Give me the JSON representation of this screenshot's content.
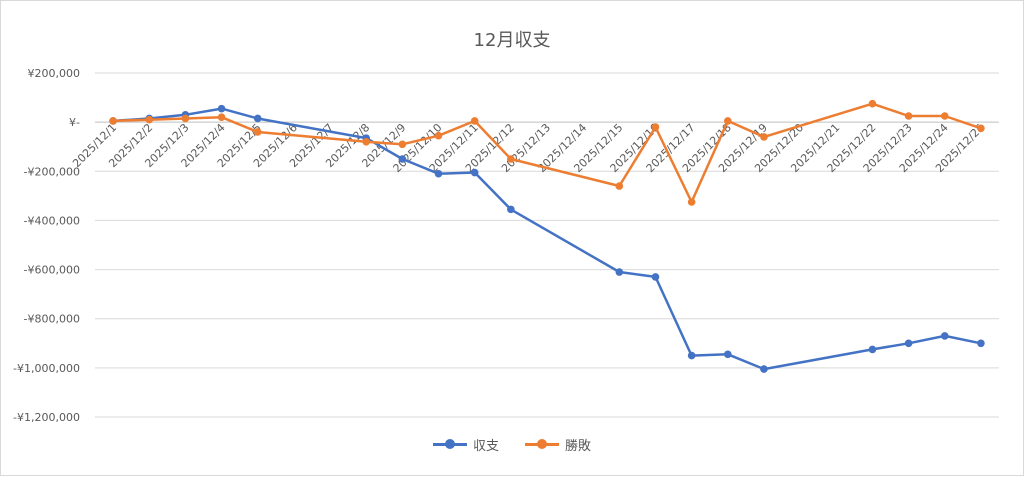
{
  "chart_data": {
    "type": "line",
    "title": "12月収支",
    "xlabel": "",
    "ylabel": "",
    "ylim": [
      -1200000,
      200000
    ],
    "yticks": [
      200000,
      0,
      -200000,
      -400000,
      -600000,
      -800000,
      -1000000,
      -1200000
    ],
    "ytick_labels": [
      "¥200,000",
      "¥-",
      "-¥200,000",
      "-¥400,000",
      "-¥600,000",
      "-¥800,000",
      "-¥1,000,000",
      "-¥1,200,000"
    ],
    "categories": [
      "2025/12/1",
      "2025/12/2",
      "2025/12/3",
      "2025/12/4",
      "2025/12/5",
      "2025/12/6",
      "2025/12/7",
      "2025/12/8",
      "2025/12/9",
      "2025/12/10",
      "2025/12/11",
      "2025/12/12",
      "2025/12/13",
      "2025/12/14",
      "2025/12/15",
      "2025/12/16",
      "2025/12/17",
      "2025/12/18",
      "2025/12/19",
      "2025/12/20",
      "2025/12/21",
      "2025/12/22",
      "2025/12/23",
      "2025/12/24",
      "2025/12/25"
    ],
    "grid": true,
    "legend_position": "bottom",
    "series": [
      {
        "name": "収支",
        "color": "#4472c4",
        "values": [
          5000,
          15000,
          30000,
          55000,
          15000,
          null,
          null,
          -65000,
          -150000,
          -210000,
          -205000,
          -355000,
          null,
          null,
          -610000,
          -630000,
          -950000,
          -945000,
          -1005000,
          null,
          null,
          -925000,
          -900000,
          -870000,
          -900000
        ]
      },
      {
        "name": "勝敗",
        "color": "#ed7d31",
        "values": [
          5000,
          10000,
          15000,
          20000,
          -40000,
          null,
          null,
          -80000,
          -90000,
          -55000,
          5000,
          -150000,
          null,
          null,
          -260000,
          -20000,
          -325000,
          5000,
          -60000,
          null,
          null,
          75000,
          25000,
          25000,
          -25000
        ]
      }
    ]
  }
}
